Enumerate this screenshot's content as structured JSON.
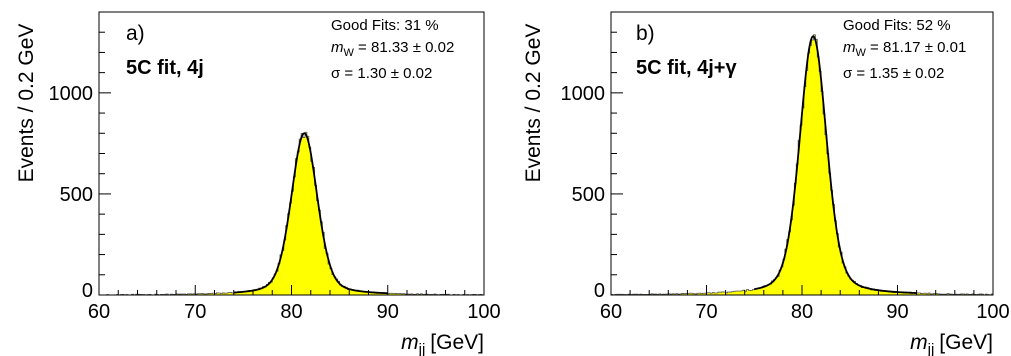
{
  "chart_data": [
    {
      "type": "histogram",
      "panel_label": "a)",
      "fit_label": "5C fit, 4j",
      "xlabel": {
        "var": "m",
        "sub": "jj",
        "unit": "[GeV]"
      },
      "ylabel": "Events / 0.2 GeV",
      "xlim": [
        60,
        100
      ],
      "ylim": [
        0,
        1400
      ],
      "x_ticks": [
        60,
        70,
        80,
        90,
        100
      ],
      "x_tick_labels": [
        "60",
        "70",
        "80",
        "90",
        "100"
      ],
      "y_ticks": [
        0,
        500,
        1000
      ],
      "y_tick_labels": [
        "0",
        "500",
        "1000"
      ],
      "grid": false,
      "stats": {
        "good_fits": "Good Fits: 31 %",
        "mw_prefix": "m",
        "mw_sub": "W",
        "mw_value": " = 81.33 ± 0.02",
        "sigma": "σ =  1.30 ± 0.02"
      },
      "fill_color": "#ffff00",
      "line_color": "#000000",
      "peak_x": 81.33,
      "peak_height": 800,
      "histogram_sigma": 1.35,
      "bin_width": 0.2,
      "fit_range": [
        74,
        90
      ]
    },
    {
      "type": "histogram",
      "panel_label": "b)",
      "fit_label": "5C fit, 4j+γ",
      "xlabel": {
        "var": "m",
        "sub": "jj",
        "unit": "[GeV]"
      },
      "ylabel": "Events / 0.2 GeV",
      "xlim": [
        60,
        100
      ],
      "ylim": [
        0,
        1400
      ],
      "x_ticks": [
        60,
        70,
        80,
        90,
        100
      ],
      "x_tick_labels": [
        "60",
        "70",
        "80",
        "90",
        "100"
      ],
      "y_ticks": [
        0,
        500,
        1000
      ],
      "y_tick_labels": [
        "0",
        "500",
        "1000"
      ],
      "grid": false,
      "stats": {
        "good_fits": "Good Fits: 52 %",
        "mw_prefix": "m",
        "mw_sub": "W",
        "mw_value": " = 81.17 ± 0.01",
        "sigma": "σ =  1.35 ± 0.02"
      },
      "fill_color": "#ffff00",
      "line_color": "#000000",
      "peak_x": 81.17,
      "peak_height": 1280,
      "histogram_sigma": 1.4,
      "bin_width": 0.2,
      "fit_range": [
        75,
        92
      ]
    }
  ]
}
